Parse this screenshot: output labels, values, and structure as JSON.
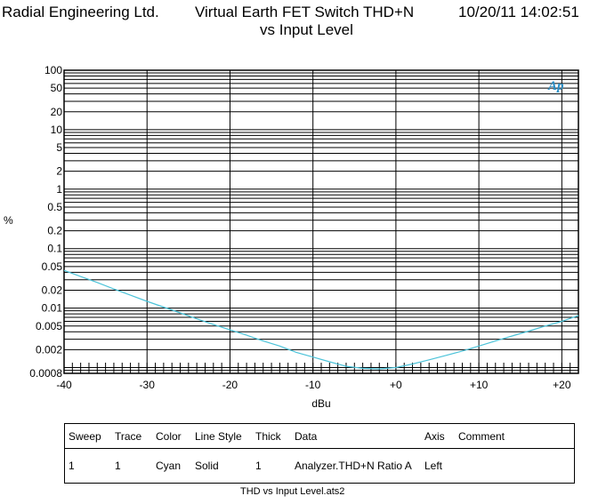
{
  "header": {
    "company": "Radial Engineering Ltd.",
    "title_line1": "Virtual Earth FET Switch THD+N",
    "title_line2": "vs Input Level",
    "timestamp": "10/20/11 14:02:51"
  },
  "chart_data": {
    "type": "line",
    "title": "Virtual Earth FET Switch THD+N vs Input Level",
    "xlabel": "dBu",
    "ylabel": "%",
    "xlim": [
      -40,
      22
    ],
    "ylim": [
      0.0008,
      100
    ],
    "y_scale": "log",
    "grid": true,
    "x_ticks": [
      -40,
      -30,
      -20,
      -10,
      0,
      10,
      20
    ],
    "x_tick_labels": [
      "-40",
      "-30",
      "-20",
      "-10",
      "+0",
      "+10",
      "+20"
    ],
    "y_ticks": [
      100,
      50,
      20,
      10,
      5,
      2,
      1,
      0.5,
      0.2,
      0.1,
      0.05,
      0.02,
      0.01,
      0.005,
      0.002,
      0.0008
    ],
    "y_tick_labels": [
      "100",
      "50",
      "20",
      "10",
      "5",
      "2",
      "1",
      "0.5",
      "0.2",
      "0.1",
      "0.05",
      "0.02",
      "0.01",
      "0.005",
      "0.002",
      "0.0008"
    ],
    "series": [
      {
        "color": "#4cc3d9",
        "x": [
          -40,
          -38,
          -36,
          -34,
          -32,
          -30,
          -28,
          -26,
          -24,
          -22,
          -20,
          -18,
          -16,
          -14,
          -12,
          -10,
          -8,
          -6,
          -4,
          -2,
          0,
          2,
          4,
          6,
          8,
          10,
          12,
          14,
          16,
          18,
          20,
          22
        ],
        "y": [
          0.043,
          0.034,
          0.027,
          0.021,
          0.0165,
          0.013,
          0.0104,
          0.0083,
          0.0066,
          0.0053,
          0.0043,
          0.0035,
          0.0028,
          0.0023,
          0.0018,
          0.0015,
          0.00125,
          0.00105,
          0.00097,
          0.00095,
          0.001,
          0.00115,
          0.00135,
          0.0016,
          0.0019,
          0.0023,
          0.0028,
          0.0034,
          0.0041,
          0.005,
          0.006,
          0.0075
        ]
      }
    ],
    "ap_logo": "Ap"
  },
  "legend_table": {
    "headers": [
      "Sweep",
      "Trace",
      "Color",
      "Line Style",
      "Thick",
      "Data",
      "Axis",
      "Comment"
    ],
    "row": [
      "1",
      "1",
      "Cyan",
      "Solid",
      "1",
      "Analyzer.THD+N Ratio A",
      "Left",
      ""
    ]
  },
  "footer": {
    "filename": "THD vs Input Level.ats2"
  }
}
